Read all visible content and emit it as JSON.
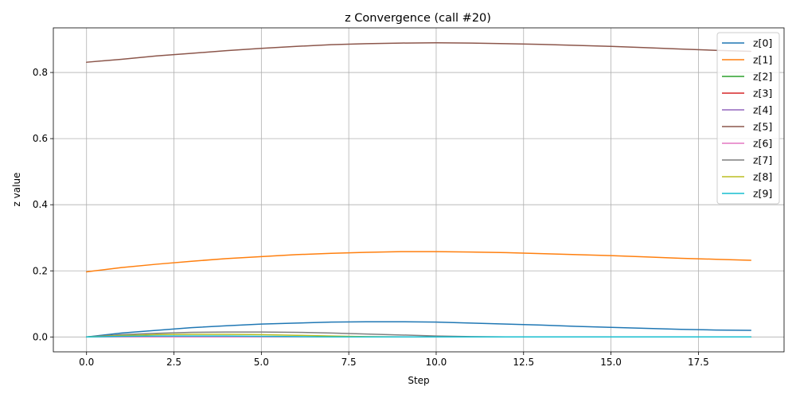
{
  "chart_data": {
    "type": "line",
    "title": "z Convergence (call #20)",
    "xlabel": "Step",
    "ylabel": "z value",
    "xlim": [
      -0.95,
      19.95
    ],
    "ylim": [
      -0.045,
      0.935
    ],
    "xticks": [
      0.0,
      2.5,
      5.0,
      7.5,
      10.0,
      12.5,
      15.0,
      17.5
    ],
    "xtick_labels": [
      "0.0",
      "2.5",
      "5.0",
      "7.5",
      "10.0",
      "12.5",
      "15.0",
      "17.5"
    ],
    "yticks": [
      0.0,
      0.2,
      0.4,
      0.6,
      0.8
    ],
    "ytick_labels": [
      "0.0",
      "0.2",
      "0.4",
      "0.6",
      "0.8"
    ],
    "grid": true,
    "legend_position": "top-right",
    "x": [
      0,
      1,
      2,
      3,
      4,
      5,
      6,
      7,
      8,
      9,
      10,
      11,
      12,
      13,
      14,
      15,
      16,
      17,
      18,
      19
    ],
    "series": [
      {
        "name": "z[0]",
        "color": "#1f77b4",
        "values": [
          0.0,
          0.012,
          0.02,
          0.028,
          0.034,
          0.039,
          0.042,
          0.045,
          0.046,
          0.046,
          0.045,
          0.042,
          0.039,
          0.036,
          0.032,
          0.029,
          0.026,
          0.023,
          0.021,
          0.02
        ]
      },
      {
        "name": "z[1]",
        "color": "#ff7f0e",
        "values": [
          0.197,
          0.21,
          0.22,
          0.229,
          0.237,
          0.243,
          0.249,
          0.253,
          0.256,
          0.258,
          0.258,
          0.257,
          0.255,
          0.252,
          0.249,
          0.246,
          0.242,
          0.238,
          0.235,
          0.232
        ]
      },
      {
        "name": "z[2]",
        "color": "#2ca02c",
        "values": [
          0.0,
          0.0,
          0.0,
          0.0,
          0.0,
          0.0,
          0.0,
          0.0,
          0.0,
          0.0,
          0.0,
          0.0,
          0.0,
          0.0,
          0.0,
          0.0,
          0.0,
          0.0,
          0.0,
          0.0
        ]
      },
      {
        "name": "z[3]",
        "color": "#d62728",
        "values": [
          0.0,
          0.0,
          0.0,
          0.0,
          0.0,
          0.0,
          0.0,
          0.0,
          0.0,
          0.0,
          0.0,
          0.0,
          0.0,
          0.0,
          0.0,
          0.0,
          0.0,
          0.0,
          0.0,
          0.0
        ]
      },
      {
        "name": "z[4]",
        "color": "#9467bd",
        "values": [
          0.0,
          0.0,
          0.0,
          0.0,
          0.0,
          0.0,
          0.0,
          0.0,
          0.0,
          0.0,
          0.0,
          0.0,
          0.0,
          0.0,
          0.0,
          0.0,
          0.0,
          0.0,
          0.0,
          0.0
        ]
      },
      {
        "name": "z[5]",
        "color": "#8c564b",
        "values": [
          0.831,
          0.84,
          0.85,
          0.858,
          0.866,
          0.873,
          0.879,
          0.884,
          0.887,
          0.889,
          0.89,
          0.889,
          0.887,
          0.885,
          0.882,
          0.879,
          0.875,
          0.871,
          0.867,
          0.864
        ]
      },
      {
        "name": "z[6]",
        "color": "#e377c2",
        "values": [
          0.0,
          0.0,
          0.0,
          0.0,
          0.0,
          0.0,
          0.0,
          0.0,
          0.0,
          0.0,
          0.0,
          0.0,
          0.0,
          0.0,
          0.0,
          0.0,
          0.0,
          0.0,
          0.0,
          0.0
        ]
      },
      {
        "name": "z[7]",
        "color": "#7f7f7f",
        "values": [
          0.0,
          0.007,
          0.011,
          0.014,
          0.015,
          0.015,
          0.014,
          0.012,
          0.009,
          0.006,
          0.003,
          0.001,
          0.0,
          0.0,
          0.0,
          0.0,
          0.0,
          0.0,
          0.0,
          0.0
        ]
      },
      {
        "name": "z[8]",
        "color": "#bcbd22",
        "values": [
          0.0,
          0.004,
          0.007,
          0.008,
          0.008,
          0.007,
          0.005,
          0.003,
          0.001,
          0.0,
          0.0,
          0.0,
          0.0,
          0.0,
          0.0,
          0.0,
          0.0,
          0.0,
          0.0,
          0.0
        ]
      },
      {
        "name": "z[9]",
        "color": "#17becf",
        "values": [
          0.0,
          0.002,
          0.003,
          0.003,
          0.003,
          0.002,
          0.001,
          0.0,
          0.0,
          0.0,
          0.0,
          0.0,
          0.0,
          0.0,
          0.0,
          0.0,
          0.0,
          0.0,
          0.0,
          0.0
        ]
      }
    ]
  }
}
